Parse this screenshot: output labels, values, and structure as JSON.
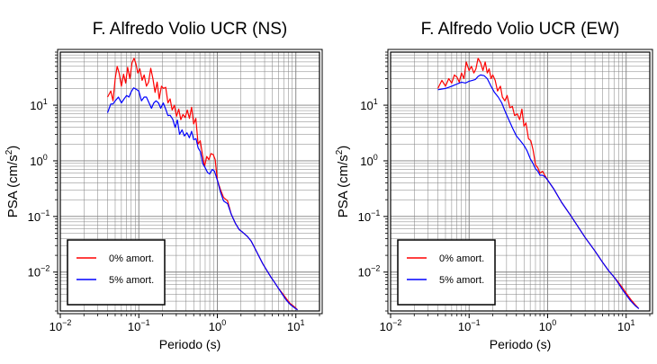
{
  "chart_data": [
    {
      "type": "line",
      "title": "F. Alfredo Volio UCR (NS)",
      "xlabel": "Periodo (s)",
      "ylabel": "PSA (cm/s",
      "ylabel_sup": "2",
      "ylabel_close": ")",
      "x_scale": "log",
      "y_scale": "log",
      "xlim": [
        0.01,
        20
      ],
      "ylim": [
        0.002,
        90
      ],
      "x_ticks": [
        {
          "base": "10",
          "exp": "−2"
        },
        {
          "base": "10",
          "exp": "−1"
        },
        {
          "base": "10",
          "exp": "0"
        },
        {
          "base": "10",
          "exp": "1"
        }
      ],
      "y_ticks": [
        {
          "base": "10",
          "exp": "−2"
        },
        {
          "base": "10",
          "exp": "−1"
        },
        {
          "base": "10",
          "exp": "0"
        },
        {
          "base": "10",
          "exp": "1"
        }
      ],
      "grid": true,
      "legend_position": "bottom-left",
      "series": [
        {
          "name": "0% amort.",
          "color": "#ff0000",
          "x": [
            0.04,
            0.044,
            0.047,
            0.05,
            0.053,
            0.056,
            0.06,
            0.064,
            0.068,
            0.072,
            0.077,
            0.082,
            0.087,
            0.092,
            0.097,
            0.103,
            0.11,
            0.117,
            0.125,
            0.133,
            0.142,
            0.151,
            0.161,
            0.171,
            0.182,
            0.194,
            0.207,
            0.22,
            0.235,
            0.25,
            0.266,
            0.284,
            0.302,
            0.322,
            0.343,
            0.365,
            0.389,
            0.414,
            0.441,
            0.47,
            0.5,
            0.533,
            0.568,
            0.605,
            0.645,
            0.687,
            0.732,
            0.78,
            0.83,
            0.885,
            0.94,
            1.0,
            1.1,
            1.2,
            1.35,
            1.5,
            1.7,
            1.9,
            2.1,
            2.4,
            2.7,
            3.0,
            3.4,
            3.8,
            4.3,
            4.8,
            5.4,
            6.0,
            6.8,
            7.6,
            8.5,
            9.5,
            10.5
          ],
          "y": [
            14,
            18,
            12,
            30,
            50,
            38,
            22,
            36,
            25,
            48,
            30,
            58,
            70,
            55,
            38,
            45,
            28,
            35,
            22,
            26,
            46,
            30,
            17,
            26,
            13,
            22,
            20,
            21,
            11,
            13,
            8.2,
            10,
            6.3,
            8.5,
            5.5,
            6.8,
            6.0,
            8.2,
            5.8,
            9.2,
            4.6,
            5.8,
            2.0,
            2.3,
            1.3,
            0.8,
            1.2,
            1.05,
            1.35,
            1.3,
            1.05,
            0.45,
            0.3,
            0.22,
            0.19,
            0.11,
            0.075,
            0.058,
            0.052,
            0.044,
            0.036,
            0.027,
            0.019,
            0.014,
            0.0105,
            0.0082,
            0.0064,
            0.0051,
            0.0041,
            0.0033,
            0.0027,
            0.0024,
            0.0021
          ]
        },
        {
          "name": "5% amort.",
          "color": "#0000ff",
          "x": [
            0.04,
            0.044,
            0.047,
            0.05,
            0.055,
            0.06,
            0.065,
            0.07,
            0.075,
            0.08,
            0.086,
            0.092,
            0.1,
            0.108,
            0.117,
            0.125,
            0.135,
            0.145,
            0.155,
            0.166,
            0.178,
            0.19,
            0.205,
            0.22,
            0.235,
            0.25,
            0.27,
            0.29,
            0.31,
            0.33,
            0.355,
            0.38,
            0.41,
            0.44,
            0.47,
            0.5,
            0.535,
            0.57,
            0.61,
            0.65,
            0.7,
            0.75,
            0.8,
            0.86,
            0.92,
            1.0,
            1.1,
            1.2,
            1.35,
            1.5,
            1.7,
            1.9,
            2.1,
            2.4,
            2.7,
            3.0,
            3.4,
            3.8,
            4.3,
            4.8,
            5.4,
            6.0,
            6.8,
            7.6,
            8.5,
            9.5,
            10.5
          ],
          "y": [
            7.3,
            10.5,
            10.5,
            12,
            14,
            11,
            13,
            15,
            14,
            17.5,
            20.5,
            19.5,
            18,
            12,
            14,
            14,
            11,
            8.8,
            11,
            12,
            11,
            8.8,
            11,
            8.5,
            6.5,
            6.6,
            5.6,
            4.0,
            5.4,
            3.0,
            3.6,
            2.8,
            3.2,
            2.6,
            3.4,
            2.4,
            2.5,
            1.7,
            1.45,
            0.9,
            0.75,
            0.62,
            0.58,
            0.7,
            0.65,
            0.45,
            0.27,
            0.19,
            0.17,
            0.11,
            0.075,
            0.058,
            0.052,
            0.044,
            0.036,
            0.027,
            0.019,
            0.014,
            0.0105,
            0.0082,
            0.0064,
            0.0051,
            0.0039,
            0.0031,
            0.0026,
            0.0023,
            0.0021
          ]
        }
      ]
    },
    {
      "type": "line",
      "title": "F. Alfredo Volio UCR (EW)",
      "xlabel": "Periodo (s)",
      "ylabel": "PSA (cm/s",
      "ylabel_sup": "2",
      "ylabel_close": ")",
      "x_scale": "log",
      "y_scale": "log",
      "xlim": [
        0.01,
        20
      ],
      "ylim": [
        0.002,
        90
      ],
      "x_ticks": [
        {
          "base": "10",
          "exp": "−2"
        },
        {
          "base": "10",
          "exp": "−1"
        },
        {
          "base": "10",
          "exp": "0"
        },
        {
          "base": "10",
          "exp": "1"
        }
      ],
      "y_ticks": [
        {
          "base": "10",
          "exp": "−2"
        },
        {
          "base": "10",
          "exp": "−1"
        },
        {
          "base": "10",
          "exp": "0"
        },
        {
          "base": "10",
          "exp": "1"
        }
      ],
      "grid": true,
      "legend_position": "bottom-left",
      "series": [
        {
          "name": "0% amort.",
          "color": "#ff0000",
          "x": [
            0.04,
            0.045,
            0.05,
            0.055,
            0.06,
            0.065,
            0.07,
            0.075,
            0.08,
            0.086,
            0.092,
            0.1,
            0.107,
            0.115,
            0.122,
            0.13,
            0.14,
            0.15,
            0.16,
            0.17,
            0.18,
            0.19,
            0.2,
            0.215,
            0.23,
            0.25,
            0.265,
            0.285,
            0.305,
            0.33,
            0.355,
            0.38,
            0.41,
            0.44,
            0.47,
            0.5,
            0.53,
            0.57,
            0.61,
            0.65,
            0.7,
            0.75,
            0.8,
            0.86,
            0.92,
            1.0,
            1.2,
            1.5,
            2.0,
            2.5,
            3.0,
            4.0,
            5.0,
            6.0,
            7.0,
            8.0,
            9.0,
            10.0,
            11.5,
            13.0,
            14.5
          ],
          "y": [
            20,
            28,
            22,
            30,
            25,
            35,
            32,
            26,
            38,
            30,
            60,
            42,
            50,
            38,
            45,
            70,
            58,
            42,
            60,
            38,
            45,
            30,
            35,
            28,
            18,
            22,
            14,
            12,
            15,
            9.0,
            9.5,
            6.5,
            7.0,
            5.5,
            8.5,
            4.2,
            4.8,
            2.5,
            2.3,
            1.6,
            0.85,
            0.75,
            0.6,
            0.65,
            0.55,
            0.45,
            0.31,
            0.18,
            0.1,
            0.062,
            0.042,
            0.024,
            0.015,
            0.0105,
            0.0082,
            0.0065,
            0.0052,
            0.0042,
            0.0032,
            0.0026,
            0.0022
          ]
        },
        {
          "name": "5% amort.",
          "color": "#0000ff",
          "x": [
            0.04,
            0.05,
            0.06,
            0.07,
            0.08,
            0.09,
            0.1,
            0.11,
            0.12,
            0.13,
            0.14,
            0.155,
            0.17,
            0.19,
            0.21,
            0.235,
            0.26,
            0.29,
            0.32,
            0.36,
            0.4,
            0.45,
            0.5,
            0.55,
            0.6,
            0.65,
            0.7,
            0.75,
            0.8,
            0.86,
            0.92,
            1.0,
            1.2,
            1.5,
            2.0,
            2.5,
            3.0,
            4.0,
            5.0,
            6.0,
            7.0,
            8.0,
            9.0,
            10.0,
            11.5,
            13.0,
            14.5
          ],
          "y": [
            19,
            20,
            22,
            24,
            26,
            25,
            27,
            28,
            29,
            33,
            35,
            34,
            30,
            22,
            17,
            14,
            11,
            7.5,
            5.5,
            3.8,
            2.8,
            2.3,
            1.9,
            1.5,
            1.1,
            0.9,
            0.72,
            0.65,
            0.55,
            0.55,
            0.52,
            0.45,
            0.31,
            0.18,
            0.1,
            0.062,
            0.042,
            0.024,
            0.015,
            0.0105,
            0.0082,
            0.0062,
            0.0048,
            0.0039,
            0.003,
            0.0025,
            0.0022
          ]
        }
      ]
    }
  ]
}
